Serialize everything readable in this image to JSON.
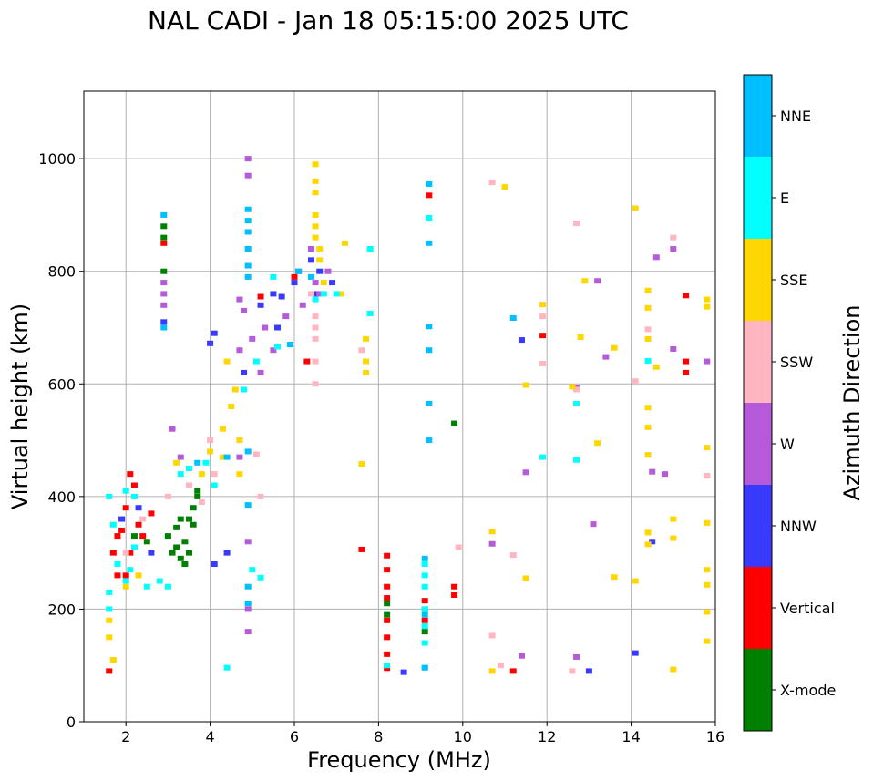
{
  "chart_data": {
    "type": "scatter",
    "title": "NAL CADI - Jan 18 05:15:00 2025 UTC",
    "xlabel": "Frequency (MHz)",
    "ylabel": "Virtual height (km)",
    "xlim": [
      1,
      16
    ],
    "ylim": [
      0,
      1120
    ],
    "x_ticks": [
      2,
      4,
      6,
      8,
      10,
      12,
      14,
      16
    ],
    "y_ticks": [
      0,
      200,
      400,
      600,
      800,
      1000
    ],
    "grid": true,
    "colorbar": {
      "label": "Azimuth Direction",
      "categories": [
        {
          "name": "X-mode",
          "color": "#008000"
        },
        {
          "name": "Vertical",
          "color": "#ff0000"
        },
        {
          "name": "NNW",
          "color": "#3a3aff"
        },
        {
          "name": "W",
          "color": "#b55bd9"
        },
        {
          "name": "SSW",
          "color": "#ffb6c1"
        },
        {
          "name": "SSE",
          "color": "#ffd700"
        },
        {
          "name": "E",
          "color": "#00ffff"
        },
        {
          "name": "NNE",
          "color": "#00bfff"
        }
      ]
    },
    "series": [
      {
        "name": "X-mode",
        "points": [
          [
            2.9,
            880
          ],
          [
            2.9,
            860
          ],
          [
            2.9,
            800
          ],
          [
            3.0,
            330
          ],
          [
            3.1,
            300
          ],
          [
            3.2,
            345
          ],
          [
            3.3,
            290
          ],
          [
            3.4,
            320
          ],
          [
            3.5,
            360
          ],
          [
            3.6,
            380
          ],
          [
            3.7,
            400
          ],
          [
            3.5,
            300
          ],
          [
            3.3,
            360
          ],
          [
            3.6,
            350
          ],
          [
            2.5,
            320
          ],
          [
            2.2,
            330
          ],
          [
            8.2,
            210
          ],
          [
            8.2,
            190
          ],
          [
            9.1,
            160
          ],
          [
            9.1,
            200
          ],
          [
            9.8,
            530
          ],
          [
            3.4,
            280
          ],
          [
            3.2,
            310
          ],
          [
            3.7,
            410
          ]
        ]
      },
      {
        "name": "Vertical",
        "points": [
          [
            1.6,
            90
          ],
          [
            1.7,
            300
          ],
          [
            1.8,
            260
          ],
          [
            1.9,
            340
          ],
          [
            2.0,
            380
          ],
          [
            2.1,
            300
          ],
          [
            2.2,
            420
          ],
          [
            2.3,
            350
          ],
          [
            2.4,
            330
          ],
          [
            2.6,
            370
          ],
          [
            2.9,
            850
          ],
          [
            5.2,
            755
          ],
          [
            6.0,
            790
          ],
          [
            6.3,
            640
          ],
          [
            7.6,
            306
          ],
          [
            8.2,
            295
          ],
          [
            8.2,
            270
          ],
          [
            8.2,
            240
          ],
          [
            8.2,
            220
          ],
          [
            8.2,
            180
          ],
          [
            8.2,
            150
          ],
          [
            8.2,
            120
          ],
          [
            8.2,
            95
          ],
          [
            9.1,
            215
          ],
          [
            9.1,
            180
          ],
          [
            9.8,
            240
          ],
          [
            9.8,
            225
          ],
          [
            11.2,
            90
          ],
          [
            11.9,
            686
          ],
          [
            15.3,
            757
          ],
          [
            15.3,
            640
          ],
          [
            15.3,
            620
          ],
          [
            2.1,
            440
          ],
          [
            1.8,
            330
          ],
          [
            2.0,
            260
          ],
          [
            9.2,
            935
          ]
        ]
      },
      {
        "name": "NNW",
        "points": [
          [
            2.9,
            710
          ],
          [
            4.0,
            672
          ],
          [
            4.1,
            690
          ],
          [
            4.4,
            300
          ],
          [
            4.1,
            280
          ],
          [
            5.2,
            740
          ],
          [
            5.6,
            700
          ],
          [
            5.7,
            755
          ],
          [
            6.0,
            780
          ],
          [
            6.1,
            800
          ],
          [
            6.4,
            820
          ],
          [
            6.6,
            800
          ],
          [
            6.9,
            780
          ],
          [
            8.6,
            88
          ],
          [
            11.4,
            678
          ],
          [
            13.0,
            90
          ],
          [
            14.1,
            122
          ],
          [
            14.5,
            320
          ],
          [
            4.8,
            620
          ],
          [
            5.5,
            760
          ],
          [
            2.3,
            380
          ],
          [
            1.9,
            360
          ],
          [
            2.6,
            300
          ],
          [
            6.5,
            760
          ]
        ]
      },
      {
        "name": "W",
        "points": [
          [
            2.9,
            760
          ],
          [
            2.9,
            740
          ],
          [
            2.9,
            780
          ],
          [
            4.9,
            970
          ],
          [
            4.9,
            1000
          ],
          [
            4.8,
            730
          ],
          [
            4.7,
            660
          ],
          [
            4.7,
            750
          ],
          [
            5.0,
            680
          ],
          [
            5.2,
            620
          ],
          [
            5.3,
            700
          ],
          [
            5.5,
            660
          ],
          [
            5.8,
            720
          ],
          [
            6.2,
            740
          ],
          [
            6.5,
            780
          ],
          [
            6.4,
            840
          ],
          [
            6.6,
            760
          ],
          [
            6.8,
            800
          ],
          [
            4.9,
            320
          ],
          [
            4.9,
            200
          ],
          [
            4.9,
            160
          ],
          [
            4.7,
            470
          ],
          [
            10.7,
            316
          ],
          [
            11.5,
            443
          ],
          [
            11.4,
            117
          ],
          [
            12.7,
            115
          ],
          [
            13.4,
            648
          ],
          [
            13.2,
            783
          ],
          [
            14.6,
            825
          ],
          [
            15.0,
            662
          ],
          [
            15.0,
            840
          ],
          [
            15.8,
            640
          ],
          [
            12.7,
            593
          ],
          [
            14.5,
            444
          ],
          [
            14.8,
            440
          ],
          [
            13.1,
            351
          ],
          [
            3.1,
            520
          ],
          [
            3.3,
            470
          ]
        ]
      },
      {
        "name": "SSW",
        "points": [
          [
            6.5,
            700
          ],
          [
            6.5,
            720
          ],
          [
            6.5,
            680
          ],
          [
            6.5,
            640
          ],
          [
            6.5,
            600
          ],
          [
            6.4,
            760
          ],
          [
            2.0,
            300
          ],
          [
            2.4,
            360
          ],
          [
            3.0,
            400
          ],
          [
            3.5,
            420
          ],
          [
            4.1,
            440
          ],
          [
            4.0,
            500
          ],
          [
            3.8,
            390
          ],
          [
            7.6,
            660
          ],
          [
            9.9,
            310
          ],
          [
            10.7,
            958
          ],
          [
            10.7,
            153
          ],
          [
            10.9,
            100
          ],
          [
            11.2,
            296
          ],
          [
            11.9,
            720
          ],
          [
            11.9,
            636
          ],
          [
            12.7,
            885
          ],
          [
            12.7,
            590
          ],
          [
            12.6,
            90
          ],
          [
            14.1,
            605
          ],
          [
            14.4,
            697
          ],
          [
            15.0,
            860
          ],
          [
            15.8,
            437
          ],
          [
            5.1,
            475
          ],
          [
            5.2,
            400
          ]
        ]
      },
      {
        "name": "SSE",
        "points": [
          [
            6.5,
            990
          ],
          [
            6.5,
            960
          ],
          [
            6.5,
            940
          ],
          [
            6.5,
            900
          ],
          [
            6.5,
            880
          ],
          [
            6.5,
            860
          ],
          [
            6.6,
            820
          ],
          [
            6.6,
            840
          ],
          [
            6.7,
            780
          ],
          [
            7.1,
            760
          ],
          [
            7.2,
            850
          ],
          [
            7.7,
            680
          ],
          [
            7.7,
            640
          ],
          [
            7.7,
            620
          ],
          [
            4.5,
            560
          ],
          [
            4.6,
            590
          ],
          [
            4.3,
            520
          ],
          [
            4.3,
            470
          ],
          [
            4.0,
            480
          ],
          [
            3.8,
            440
          ],
          [
            4.7,
            500
          ],
          [
            4.7,
            440
          ],
          [
            3.2,
            460
          ],
          [
            1.6,
            180
          ],
          [
            1.6,
            150
          ],
          [
            1.7,
            110
          ],
          [
            2.0,
            240
          ],
          [
            2.3,
            260
          ],
          [
            7.6,
            458
          ],
          [
            10.7,
            90
          ],
          [
            10.7,
            338
          ],
          [
            11.0,
            950
          ],
          [
            11.5,
            598
          ],
          [
            11.5,
            255
          ],
          [
            11.9,
            741
          ],
          [
            12.6,
            595
          ],
          [
            12.8,
            683
          ],
          [
            12.9,
            783
          ],
          [
            13.2,
            495
          ],
          [
            13.6,
            257
          ],
          [
            13.6,
            664
          ],
          [
            14.1,
            912
          ],
          [
            14.1,
            250
          ],
          [
            14.4,
            766
          ],
          [
            14.4,
            735
          ],
          [
            14.4,
            680
          ],
          [
            14.4,
            558
          ],
          [
            14.4,
            523
          ],
          [
            14.4,
            474
          ],
          [
            14.4,
            336
          ],
          [
            14.4,
            315
          ],
          [
            14.6,
            630
          ],
          [
            15.0,
            360
          ],
          [
            15.0,
            326
          ],
          [
            15.0,
            93
          ],
          [
            15.8,
            750
          ],
          [
            15.8,
            737
          ],
          [
            15.8,
            487
          ],
          [
            15.8,
            353
          ],
          [
            15.8,
            270
          ],
          [
            15.8,
            243
          ],
          [
            15.8,
            195
          ],
          [
            15.8,
            143
          ],
          [
            4.4,
            640
          ]
        ]
      },
      {
        "name": "E",
        "points": [
          [
            1.6,
            200
          ],
          [
            1.6,
            230
          ],
          [
            1.6,
            400
          ],
          [
            1.7,
            350
          ],
          [
            1.8,
            280
          ],
          [
            2.0,
            250
          ],
          [
            2.1,
            270
          ],
          [
            2.2,
            400
          ],
          [
            2.5,
            240
          ],
          [
            2.8,
            250
          ],
          [
            3.0,
            240
          ],
          [
            3.3,
            440
          ],
          [
            3.5,
            450
          ],
          [
            3.9,
            460
          ],
          [
            4.1,
            420
          ],
          [
            4.4,
            96
          ],
          [
            4.8,
            590
          ],
          [
            5.0,
            270
          ],
          [
            5.2,
            256
          ],
          [
            5.5,
            790
          ],
          [
            5.6,
            666
          ],
          [
            6.5,
            750
          ],
          [
            6.7,
            760
          ],
          [
            7.0,
            760
          ],
          [
            7.8,
            840
          ],
          [
            7.8,
            725
          ],
          [
            8.2,
            100
          ],
          [
            9.1,
            280
          ],
          [
            9.1,
            260
          ],
          [
            9.1,
            240
          ],
          [
            9.1,
            200
          ],
          [
            9.1,
            170
          ],
          [
            9.1,
            140
          ],
          [
            9.1,
            96
          ],
          [
            9.2,
            895
          ],
          [
            11.9,
            470
          ],
          [
            12.7,
            565
          ],
          [
            12.7,
            465
          ],
          [
            14.4,
            641
          ],
          [
            2.0,
            410
          ],
          [
            2.2,
            310
          ],
          [
            5.1,
            640
          ]
        ]
      },
      {
        "name": "NNE",
        "points": [
          [
            2.9,
            900
          ],
          [
            2.9,
            700
          ],
          [
            4.9,
            910
          ],
          [
            4.9,
            890
          ],
          [
            4.9,
            870
          ],
          [
            4.9,
            840
          ],
          [
            4.9,
            810
          ],
          [
            4.9,
            790
          ],
          [
            4.9,
            480
          ],
          [
            4.9,
            385
          ],
          [
            4.9,
            240
          ],
          [
            4.9,
            210
          ],
          [
            5.9,
            670
          ],
          [
            6.1,
            800
          ],
          [
            6.4,
            790
          ],
          [
            9.2,
            955
          ],
          [
            9.2,
            850
          ],
          [
            9.2,
            702
          ],
          [
            9.2,
            660
          ],
          [
            9.2,
            565
          ],
          [
            9.2,
            500
          ],
          [
            9.1,
            290
          ],
          [
            9.1,
            190
          ],
          [
            9.1,
            96
          ],
          [
            11.2,
            717
          ],
          [
            4.4,
            470
          ],
          [
            3.7,
            460
          ]
        ]
      }
    ]
  }
}
